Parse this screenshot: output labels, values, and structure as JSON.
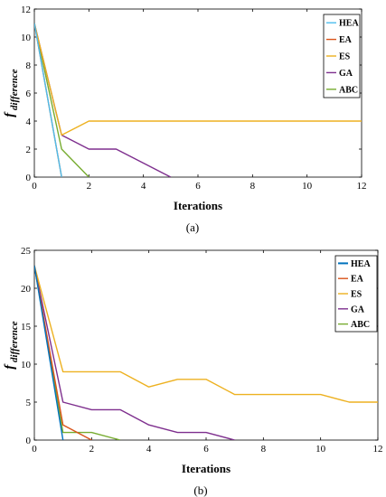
{
  "chart_data": [
    {
      "type": "line",
      "panel_label": "(a)",
      "xlabel": "Iterations",
      "ylabel_main": "f",
      "ylabel_sub": "difference",
      "xlim": [
        0,
        12
      ],
      "ylim": [
        0,
        12
      ],
      "xticks": [
        0,
        2,
        4,
        6,
        8,
        10,
        12
      ],
      "yticks": [
        0,
        2,
        4,
        6,
        8,
        10,
        12
      ],
      "legend_position": "top-right",
      "series": [
        {
          "name": "HEA",
          "color": "#4dbeee",
          "points": [
            [
              0,
              11
            ],
            [
              1,
              0
            ]
          ]
        },
        {
          "name": "EA",
          "color": "#d95319",
          "points": [
            [
              0,
              11
            ],
            [
              1,
              0
            ]
          ]
        },
        {
          "name": "ES",
          "color": "#edb120",
          "points": [
            [
              0,
              11
            ],
            [
              1,
              3
            ],
            [
              2,
              4
            ],
            [
              3,
              4
            ],
            [
              4,
              4
            ],
            [
              5,
              4
            ],
            [
              6,
              4
            ],
            [
              7,
              4
            ],
            [
              8,
              4
            ],
            [
              9,
              4
            ],
            [
              10,
              4
            ],
            [
              11,
              4
            ],
            [
              12,
              4
            ]
          ]
        },
        {
          "name": "GA",
          "color": "#7e2f8e",
          "points": [
            [
              0,
              11
            ],
            [
              1,
              3
            ],
            [
              2,
              2
            ],
            [
              3,
              2
            ],
            [
              4,
              1
            ],
            [
              5,
              0
            ]
          ]
        },
        {
          "name": "ABC",
          "color": "#77ac30",
          "points": [
            [
              0,
              11
            ],
            [
              1,
              2
            ],
            [
              2,
              0
            ]
          ]
        }
      ]
    },
    {
      "type": "line",
      "panel_label": "(b)",
      "xlabel": "Iterations",
      "ylabel_main": "f",
      "ylabel_sub": "difference",
      "xlim": [
        0,
        12
      ],
      "ylim": [
        0,
        25
      ],
      "xticks": [
        0,
        2,
        4,
        6,
        8,
        10,
        12
      ],
      "yticks": [
        0,
        5,
        10,
        15,
        20,
        25
      ],
      "legend_position": "top-right",
      "series": [
        {
          "name": "HEA",
          "color": "#0072bd",
          "points": [
            [
              0,
              23
            ],
            [
              1,
              0
            ]
          ]
        },
        {
          "name": "EA",
          "color": "#d95319",
          "points": [
            [
              0,
              23
            ],
            [
              1,
              2
            ],
            [
              2,
              0
            ]
          ]
        },
        {
          "name": "ES",
          "color": "#edb120",
          "points": [
            [
              0,
              23
            ],
            [
              1,
              9
            ],
            [
              2,
              9
            ],
            [
              3,
              9
            ],
            [
              4,
              7
            ],
            [
              5,
              8
            ],
            [
              6,
              8
            ],
            [
              7,
              6
            ],
            [
              8,
              6
            ],
            [
              9,
              6
            ],
            [
              10,
              6
            ],
            [
              11,
              5
            ],
            [
              12,
              5
            ]
          ]
        },
        {
          "name": "GA",
          "color": "#7e2f8e",
          "points": [
            [
              0,
              23
            ],
            [
              1,
              5
            ],
            [
              2,
              4
            ],
            [
              3,
              4
            ],
            [
              4,
              2
            ],
            [
              5,
              1
            ],
            [
              6,
              1
            ],
            [
              7,
              0
            ]
          ]
        },
        {
          "name": "ABC",
          "color": "#77ac30",
          "points": [
            [
              0,
              23
            ],
            [
              1,
              1
            ],
            [
              2,
              1
            ],
            [
              3,
              0
            ]
          ]
        }
      ]
    }
  ]
}
